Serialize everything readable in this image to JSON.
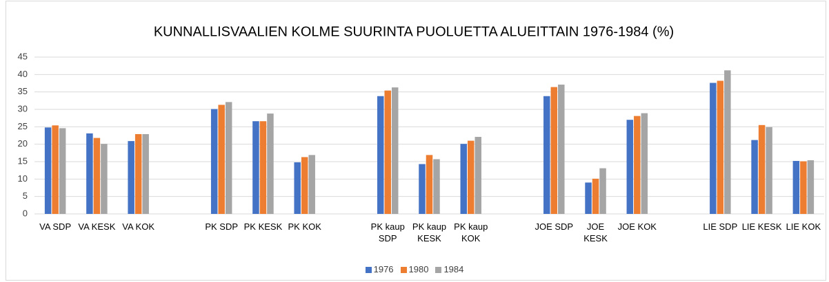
{
  "chart_data": {
    "type": "bar",
    "title": "KUNNALLISVAALIEN KOLME SUURINTA PUOLUETTA ALUEITTAIN 1976-1984 (%)",
    "categories": [
      "VA SDP",
      "VA KESK",
      "VA KOK",
      null,
      "PK SDP",
      "PK KESK",
      "PK KOK",
      null,
      "PK kaup SDP",
      "PK kaup KESK",
      "PK kaup KOK",
      null,
      "JOE SDP",
      "JOE KESK",
      "JOE KOK",
      null,
      "LIE SDP",
      "LIE KESK",
      "LIE KOK"
    ],
    "series": [
      {
        "name": "1976",
        "color": "#4472c4",
        "values": [
          24.8,
          23.1,
          20.9,
          null,
          30.1,
          26.6,
          14.8,
          null,
          33.8,
          14.3,
          20.1,
          null,
          33.8,
          9.0,
          27.0,
          null,
          37.6,
          21.2,
          15.2
        ]
      },
      {
        "name": "1980",
        "color": "#ed7d31",
        "values": [
          25.4,
          21.8,
          22.9,
          null,
          31.3,
          26.6,
          16.3,
          null,
          35.4,
          16.9,
          21.0,
          null,
          36.4,
          10.1,
          28.1,
          null,
          38.2,
          25.5,
          15.1
        ]
      },
      {
        "name": "1984",
        "color": "#a5a5a5",
        "values": [
          24.6,
          20.1,
          22.9,
          null,
          32.1,
          28.8,
          16.9,
          null,
          36.3,
          15.7,
          22.1,
          null,
          37.1,
          13.1,
          28.9,
          null,
          41.2,
          24.9,
          15.4
        ]
      }
    ],
    "ylim": [
      0,
      45
    ],
    "yticks": [
      0,
      5,
      10,
      15,
      20,
      25,
      30,
      35,
      40,
      45
    ],
    "grid": true,
    "legend": "bottom"
  }
}
